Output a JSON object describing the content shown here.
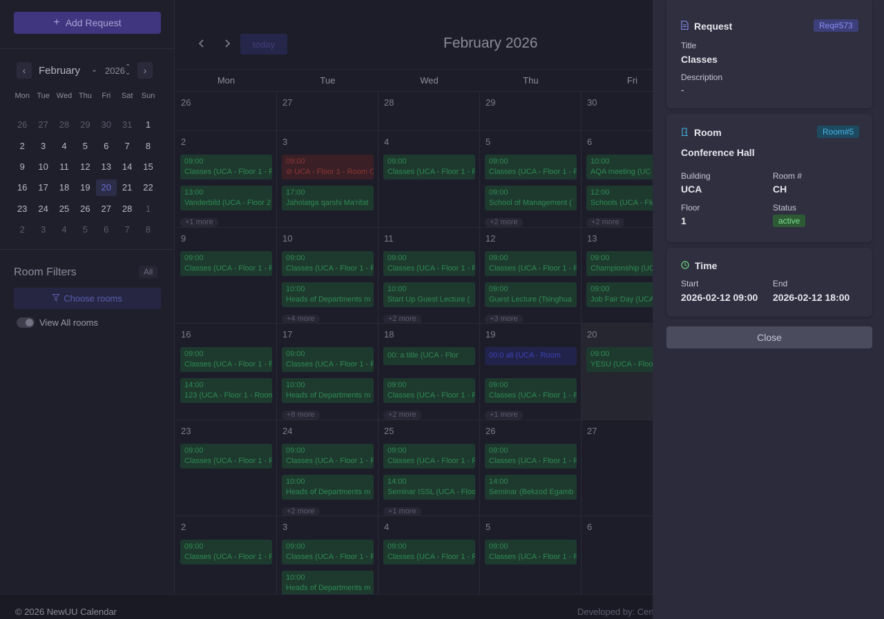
{
  "sidebar": {
    "add_request_label": "Add Request",
    "mini_calendar": {
      "month": "February",
      "year": "2026",
      "weekdays": [
        "Mon",
        "Tue",
        "Wed",
        "Thu",
        "Fri",
        "Sat",
        "Sun"
      ],
      "weeks": [
        [
          "26",
          "27",
          "28",
          "29",
          "30",
          "31",
          "1"
        ],
        [
          "2",
          "3",
          "4",
          "5",
          "6",
          "7",
          "8"
        ],
        [
          "9",
          "10",
          "11",
          "12",
          "13",
          "14",
          "15"
        ],
        [
          "16",
          "17",
          "18",
          "19",
          "20",
          "21",
          "22"
        ],
        [
          "23",
          "24",
          "25",
          "26",
          "27",
          "28",
          "1"
        ],
        [
          "2",
          "3",
          "4",
          "5",
          "6",
          "7",
          "8"
        ]
      ],
      "selected_day": "20"
    },
    "room_filters_title": "Room Filters",
    "all_badge": "All",
    "choose_rooms_label": "Choose rooms",
    "view_all_rooms_label": "View All rooms"
  },
  "calendar": {
    "title": "February 2026",
    "today_label": "today",
    "weekdays": [
      "Mon",
      "Tue",
      "Wed",
      "Thu",
      "Fri"
    ],
    "weeks": [
      {
        "days": [
          {
            "num": "26",
            "events": [],
            "more": ""
          },
          {
            "num": "27",
            "events": [],
            "more": ""
          },
          {
            "num": "28",
            "events": [],
            "more": ""
          },
          {
            "num": "29",
            "events": [],
            "more": ""
          },
          {
            "num": "30",
            "events": [],
            "more": ""
          }
        ]
      },
      {
        "days": [
          {
            "num": "2",
            "events": [
              {
                "time": "09:00",
                "text": "Classes (UCA - Floor 1 - Ro"
              },
              {
                "time": "13:00",
                "text": "Vanderbild (UCA - Floor 2"
              }
            ],
            "more": "+1 more"
          },
          {
            "num": "3",
            "events": [
              {
                "time": "09:00",
                "text": "⊘ UCA - Floor 1 - Room C",
                "color": "red"
              },
              {
                "time": "17:00",
                "text": "Jaholatga qarshi Ma'rifat"
              }
            ],
            "more": ""
          },
          {
            "num": "4",
            "events": [
              {
                "time": "09:00",
                "text": "Classes (UCA - Floor 1 - Ro"
              }
            ],
            "more": ""
          },
          {
            "num": "5",
            "events": [
              {
                "time": "09:00",
                "text": "Classes (UCA - Floor 1 - Ro"
              },
              {
                "time": "09:00",
                "text": "School of Management ("
              }
            ],
            "more": "+2 more"
          },
          {
            "num": "6",
            "events": [
              {
                "time": "10:00",
                "text": "AQA meeting (UC"
              },
              {
                "time": "12:00",
                "text": "Schools (UCA - Flo"
              }
            ],
            "more": "+2 more"
          }
        ]
      },
      {
        "days": [
          {
            "num": "9",
            "events": [
              {
                "time": "09:00",
                "text": "Classes (UCA - Floor 1 - Ro"
              }
            ],
            "more": ""
          },
          {
            "num": "10",
            "events": [
              {
                "time": "09:00",
                "text": "Classes (UCA - Floor 1 - Ro"
              },
              {
                "time": "10:00",
                "text": "Heads of Departments m"
              }
            ],
            "more": "+4 more"
          },
          {
            "num": "11",
            "events": [
              {
                "time": "09:00",
                "text": "Classes (UCA - Floor 1 - Ro"
              },
              {
                "time": "10:00",
                "text": "Start Up Guest Lecture ("
              }
            ],
            "more": "+2 more"
          },
          {
            "num": "12",
            "events": [
              {
                "time": "09:00",
                "text": "Classes (UCA - Floor 1 - Ro"
              },
              {
                "time": "09:00",
                "text": "Guest Lecture (Tsinghua"
              }
            ],
            "more": "+3 more"
          },
          {
            "num": "13",
            "events": [
              {
                "time": "09:00",
                "text": "Championship (UC"
              },
              {
                "time": "09:00",
                "text": "Job Fair Day (UCA"
              }
            ],
            "more": ""
          }
        ]
      },
      {
        "days": [
          {
            "num": "16",
            "events": [
              {
                "time": "09:00",
                "text": "Classes (UCA - Floor 1 - Ro"
              },
              {
                "time": "14:00",
                "text": "123 (UCA - Floor 1 - Room"
              }
            ],
            "more": ""
          },
          {
            "num": "17",
            "events": [
              {
                "time": "09:00",
                "text": "Classes (UCA - Floor 1 - Ro"
              },
              {
                "time": "10:00",
                "text": "Heads of Departments m"
              }
            ],
            "more": "+8 more"
          },
          {
            "num": "18",
            "events": [
              {
                "time": "",
                "text": "00: a title (UCA - Flor",
                "single": true
              },
              {
                "time": "09:00",
                "text": "Classes (UCA - Floor 1 - Ro"
              }
            ],
            "more": "+2 more"
          },
          {
            "num": "19",
            "events": [
              {
                "time": "",
                "text": "00:0 ali (UCA - Room",
                "single": true,
                "color": "blue"
              },
              {
                "time": "09:00",
                "text": "Classes (UCA - Floor 1 - Ro"
              }
            ],
            "more": "+1 more"
          },
          {
            "num": "20",
            "events": [
              {
                "time": "09:00",
                "text": "YESU (UCA - Floo"
              }
            ],
            "more": "",
            "shade": true
          }
        ]
      },
      {
        "days": [
          {
            "num": "23",
            "events": [
              {
                "time": "09:00",
                "text": "Classes (UCA - Floor 1 - Ro"
              }
            ],
            "more": ""
          },
          {
            "num": "24",
            "events": [
              {
                "time": "09:00",
                "text": "Classes (UCA - Floor 1 - Ro"
              },
              {
                "time": "10:00",
                "text": "Heads of Departments m"
              }
            ],
            "more": "+2 more"
          },
          {
            "num": "25",
            "events": [
              {
                "time": "09:00",
                "text": "Classes (UCA - Floor 1 - Ro"
              },
              {
                "time": "14:00",
                "text": "Seminar ISSL (UCA - Floo"
              }
            ],
            "more": "+1 more"
          },
          {
            "num": "26",
            "events": [
              {
                "time": "09:00",
                "text": "Classes (UCA - Floor 1 - Ro"
              },
              {
                "time": "14:00",
                "text": "Seminar (Bekzod Egamb"
              }
            ],
            "more": ""
          },
          {
            "num": "27",
            "events": [],
            "more": ""
          }
        ]
      },
      {
        "days": [
          {
            "num": "2",
            "events": [
              {
                "time": "09:00",
                "text": "Classes (UCA - Floor 1 - Ro"
              }
            ],
            "more": ""
          },
          {
            "num": "3",
            "events": [
              {
                "time": "09:00",
                "text": "Classes (UCA - Floor 1 - Ro"
              },
              {
                "time": "10:00",
                "text": "Heads of Departments m"
              }
            ],
            "more": ""
          },
          {
            "num": "4",
            "events": [
              {
                "time": "09:00",
                "text": "Classes (UCA - Floor 1 - Ro"
              }
            ],
            "more": ""
          },
          {
            "num": "5",
            "events": [
              {
                "time": "09:00",
                "text": "Classes (UCA - Floor 1 - Ro"
              }
            ],
            "more": ""
          },
          {
            "num": "6",
            "events": [],
            "more": ""
          }
        ]
      }
    ]
  },
  "footer": {
    "copyright": "© 2026 NewUU Calendar",
    "developed_by": "Developed by: Cen"
  },
  "panel": {
    "request": {
      "heading": "Request",
      "badge": "Req#573",
      "title_label": "Title",
      "title_value": "Classes",
      "description_label": "Description",
      "description_value": "-"
    },
    "room": {
      "heading": "Room",
      "badge": "Room#5",
      "name": "Conference Hall",
      "building_label": "Building",
      "building_value": "UCA",
      "roomno_label": "Room #",
      "roomno_value": "CH",
      "floor_label": "Floor",
      "floor_value": "1",
      "status_label": "Status",
      "status_value": "active"
    },
    "time": {
      "heading": "Time",
      "start_label": "Start",
      "start_value": "2026-02-12 09:00",
      "end_label": "End",
      "end_value": "2026-02-12 18:00"
    },
    "close_label": "Close"
  }
}
